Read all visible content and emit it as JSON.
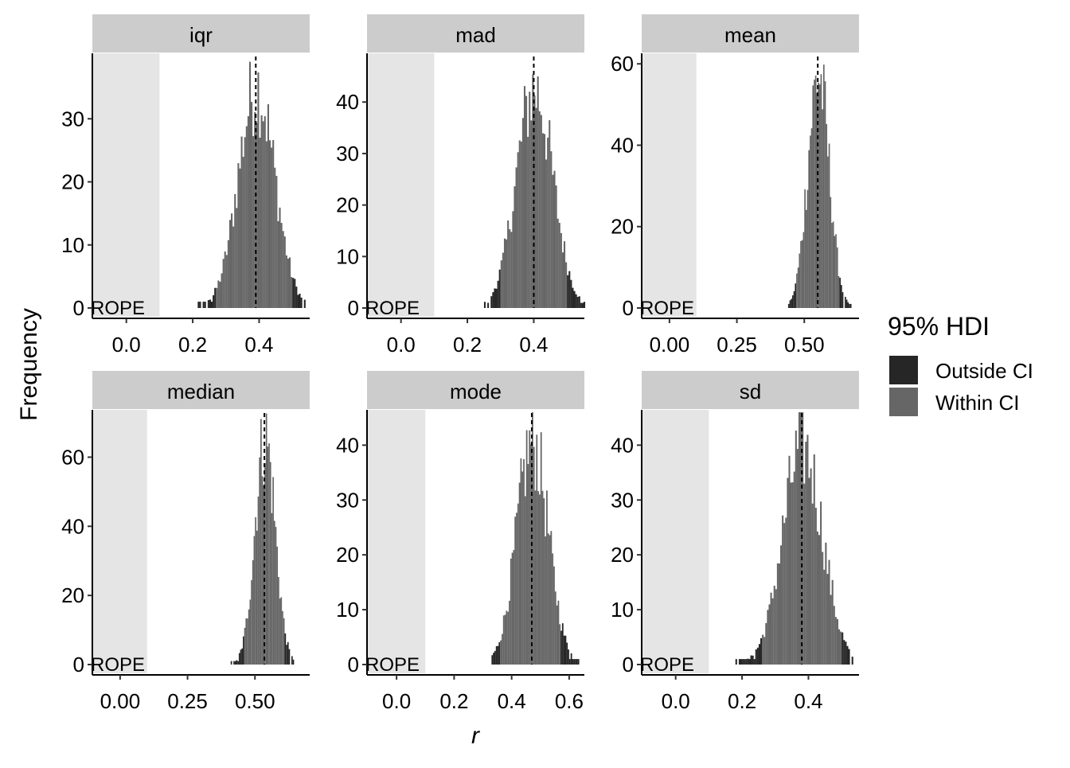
{
  "chart_data": {
    "type": "bar",
    "chart_kind": "faceted histogram",
    "xlabel": "r",
    "ylabel": "Frequency",
    "legend": {
      "title": "95% HDI",
      "position": "right",
      "entries": [
        {
          "label": "Outside CI",
          "color": "#262626"
        },
        {
          "label": "Within CI",
          "color": "#666666"
        }
      ]
    },
    "colors": {
      "outside": "#262626",
      "within": "#666666",
      "rope_band": "#e5e5e5",
      "strip": "#cccccc"
    },
    "rope": {
      "label": "ROPE",
      "range": [
        -0.1,
        0.1
      ]
    },
    "bin_width": 0.005,
    "panels": [
      {
        "name": "iqr",
        "xlim": [
          -0.1,
          0.55
        ],
        "ylim": [
          0,
          40
        ],
        "xticks": [
          0.0,
          0.2,
          0.4
        ],
        "xtick_labels": [
          "0.0",
          "0.2",
          "0.4"
        ],
        "yticks": [
          0,
          10,
          20,
          30
        ],
        "ytick_labels": [
          "0",
          "10",
          "20",
          "30"
        ],
        "center": 0.39,
        "sd": 0.055,
        "peak": 38,
        "hdi": [
          0.27,
          0.5
        ],
        "range": [
          0.2,
          0.54
        ],
        "dashed_x": 0.39
      },
      {
        "name": "mad",
        "xlim": [
          -0.1,
          0.55
        ],
        "ylim": [
          0,
          49
        ],
        "xticks": [
          0.0,
          0.2,
          0.4
        ],
        "xtick_labels": [
          "0.0",
          "0.2",
          "0.4"
        ],
        "yticks": [
          0,
          10,
          20,
          30,
          40
        ],
        "ytick_labels": [
          "0",
          "10",
          "20",
          "30",
          "40"
        ],
        "center": 0.4,
        "sd": 0.055,
        "peak": 46,
        "hdi": [
          0.3,
          0.5
        ],
        "range": [
          0.25,
          0.55
        ],
        "dashed_x": 0.4
      },
      {
        "name": "mean",
        "xlim": [
          -0.1,
          0.7
        ],
        "ylim": [
          0,
          62
        ],
        "xticks": [
          0.0,
          0.25,
          0.5
        ],
        "xtick_labels": [
          "0.00",
          "0.25",
          "0.50"
        ],
        "yticks": [
          0,
          20,
          40,
          60
        ],
        "ytick_labels": [
          "0",
          "20",
          "40",
          "60"
        ],
        "center": 0.55,
        "sd": 0.04,
        "peak": 62,
        "hdi": [
          0.47,
          0.63
        ],
        "range": [
          0.44,
          0.67
        ],
        "dashed_x": 0.55
      },
      {
        "name": "median",
        "xlim": [
          -0.1,
          0.7
        ],
        "ylim": [
          0,
          73
        ],
        "xticks": [
          0.0,
          0.25,
          0.5
        ],
        "xtick_labels": [
          "0.00",
          "0.25",
          "0.50"
        ],
        "yticks": [
          0,
          20,
          40,
          60
        ],
        "ytick_labels": [
          "0",
          "20",
          "40",
          "60"
        ],
        "center": 0.535,
        "sd": 0.038,
        "peak": 71,
        "hdi": [
          0.46,
          0.61
        ],
        "range": [
          0.41,
          0.64
        ],
        "dashed_x": 0.535
      },
      {
        "name": "mode",
        "xlim": [
          -0.1,
          0.65
        ],
        "ylim": [
          0,
          46
        ],
        "xticks": [
          0.0,
          0.2,
          0.4,
          0.6
        ],
        "xtick_labels": [
          "0.0",
          "0.2",
          "0.4",
          "0.6"
        ],
        "yticks": [
          0,
          10,
          20,
          30,
          40
        ],
        "ytick_labels": [
          "0",
          "10",
          "20",
          "30",
          "40"
        ],
        "center": 0.47,
        "sd": 0.055,
        "peak": 44,
        "hdi": [
          0.36,
          0.57
        ],
        "range": [
          0.33,
          0.63
        ],
        "dashed_x": 0.47
      },
      {
        "name": "sd",
        "xlim": [
          -0.1,
          0.55
        ],
        "ylim": [
          0,
          46
        ],
        "xticks": [
          0.0,
          0.2,
          0.4
        ],
        "xtick_labels": [
          "0.0",
          "0.2",
          "0.4"
        ],
        "yticks": [
          0,
          10,
          20,
          30,
          40
        ],
        "ytick_labels": [
          "0",
          "10",
          "20",
          "30",
          "40"
        ],
        "center": 0.38,
        "sd": 0.06,
        "peak": 43,
        "hdi": [
          0.26,
          0.5
        ],
        "range": [
          0.18,
          0.53
        ],
        "dashed_x": 0.38
      }
    ]
  }
}
